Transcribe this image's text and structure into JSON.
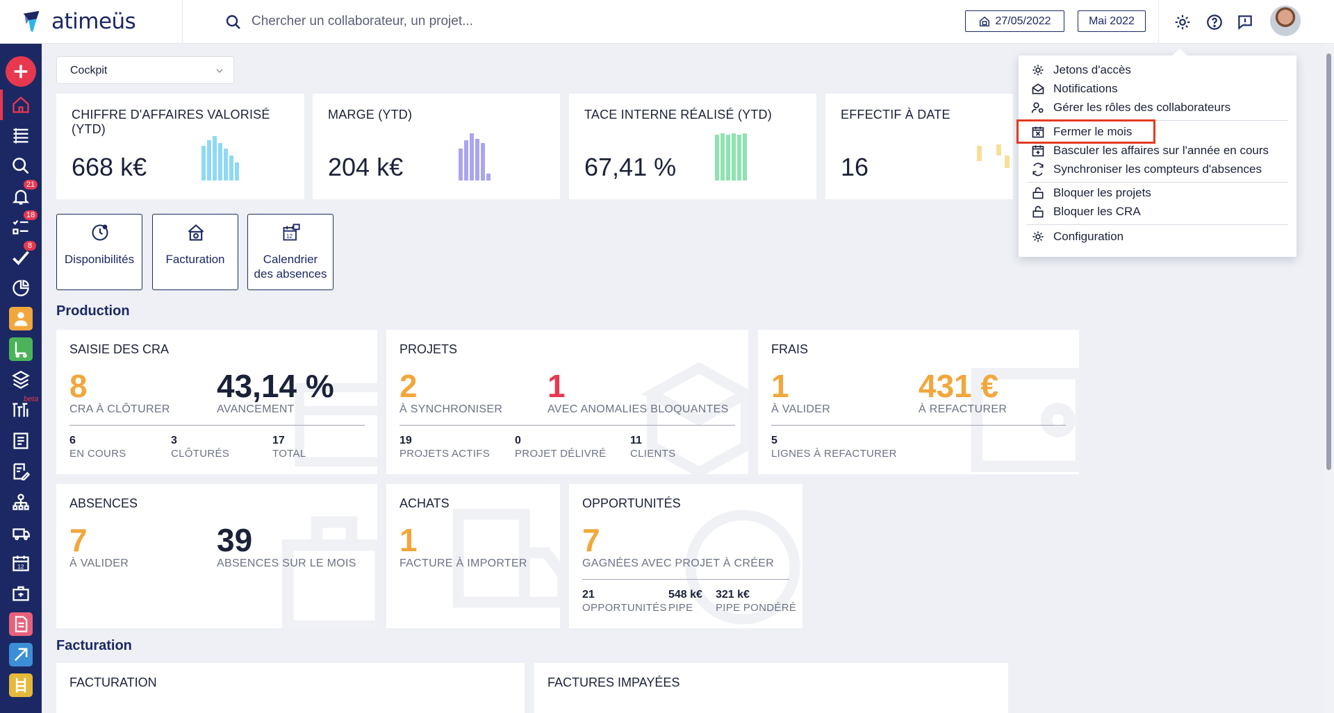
{
  "app": {
    "name": "atimeüs"
  },
  "search": {
    "placeholder": "Chercher un collaborateur, un projet..."
  },
  "header": {
    "date": "27/05/2022",
    "month": "Mai 2022"
  },
  "sidebar": {
    "badges": {
      "notifications": "21",
      "tasks": "18",
      "validations": "8",
      "beta": "beta"
    }
  },
  "dashboard_select": {
    "value": "Cockpit"
  },
  "kpis": [
    {
      "label": "CHIFFRE D'AFFAIRES VALORISÉ (YTD)",
      "value": "668 k€",
      "color": "#8fd9f5"
    },
    {
      "label": "MARGE (YTD)",
      "value": "204 k€",
      "color": "#a9a5ef"
    },
    {
      "label": "TACE INTERNE RÉALISÉ (YTD)",
      "value": "67,41 %",
      "color": "#8de3b0"
    },
    {
      "label": "EFFECTIF À DATE",
      "value": "16",
      "color": "#f6df9a"
    }
  ],
  "shortcuts": [
    {
      "label": "Disponibilités"
    },
    {
      "label": "Facturation"
    },
    {
      "label_line1": "Calendrier",
      "label_line2": "des absences"
    }
  ],
  "sections": {
    "production": "Production",
    "facturation": "Facturation"
  },
  "cards": {
    "cra": {
      "title": "SAISIE DES CRA",
      "main": [
        {
          "value": "8",
          "label": "CRA À CLÔTURER"
        },
        {
          "value": "43,14 %",
          "label": "AVANCEMENT"
        }
      ],
      "sub": [
        {
          "value": "6",
          "label": "EN COURS"
        },
        {
          "value": "3",
          "label": "CLÔTURÉS"
        },
        {
          "value": "17",
          "label": "TOTAL"
        }
      ]
    },
    "projets": {
      "title": "PROJETS",
      "main": [
        {
          "value": "2",
          "label": "À SYNCHRONISER"
        },
        {
          "value": "1",
          "label": "AVEC ANOMALIES BLOQUANTES"
        }
      ],
      "sub": [
        {
          "value": "19",
          "label": "PROJETS ACTIFS"
        },
        {
          "value": "0",
          "label": "PROJET DÉLIVRÉ"
        },
        {
          "value": "11",
          "label": "CLIENTS"
        }
      ]
    },
    "frais": {
      "title": "FRAIS",
      "main": [
        {
          "value": "1",
          "label": "À VALIDER"
        },
        {
          "value": "431 €",
          "label": "À REFACTURER"
        }
      ],
      "sub": [
        {
          "value": "5",
          "label": "LIGNES À REFACTURER"
        }
      ]
    },
    "absences": {
      "title": "ABSENCES",
      "main": [
        {
          "value": "7",
          "label": "À VALIDER"
        },
        {
          "value": "39",
          "label": "ABSENCES SUR LE MOIS"
        }
      ]
    },
    "achats": {
      "title": "ACHATS",
      "main": [
        {
          "value": "1",
          "label": "FACTURE À IMPORTER"
        }
      ]
    },
    "opportunites": {
      "title": "OPPORTUNITÉS",
      "main": [
        {
          "value": "7",
          "label": "GAGNÉES AVEC PROJET À CRÉER"
        }
      ],
      "sub": [
        {
          "value": "21",
          "label": "OPPORTUNITÉS"
        },
        {
          "value": "548 k€",
          "label": "PIPE"
        },
        {
          "value": "321 k€",
          "label": "PIPE PONDÉRÉ"
        }
      ]
    },
    "facturation": {
      "title": "FACTURATION"
    },
    "impayees": {
      "title": "FACTURES IMPAYÉES"
    }
  },
  "menu": {
    "items": [
      {
        "label": "Jetons d'accès",
        "icon": "gear-icon"
      },
      {
        "label": "Notifications",
        "icon": "envelope-open-icon"
      },
      {
        "label": "Gérer les rôles des collaborateurs",
        "icon": "user-roles-icon"
      },
      {
        "label": "Fermer le mois",
        "icon": "calendar-close-icon"
      },
      {
        "label": "Basculer les affaires sur l'année en cours",
        "icon": "calendar-switch-icon"
      },
      {
        "label": "Synchroniser les compteurs d'absences",
        "icon": "sync-icon"
      },
      {
        "label": "Bloquer les projets",
        "icon": "lock-icon"
      },
      {
        "label": "Bloquer les CRA",
        "icon": "lock-icon"
      },
      {
        "label": "Configuration",
        "icon": "gear-icon"
      }
    ]
  },
  "colors": {
    "navy": "#1b2863",
    "accent_red": "#e8384f",
    "orange": "#f1a73c",
    "highlight": "#e53a20"
  }
}
